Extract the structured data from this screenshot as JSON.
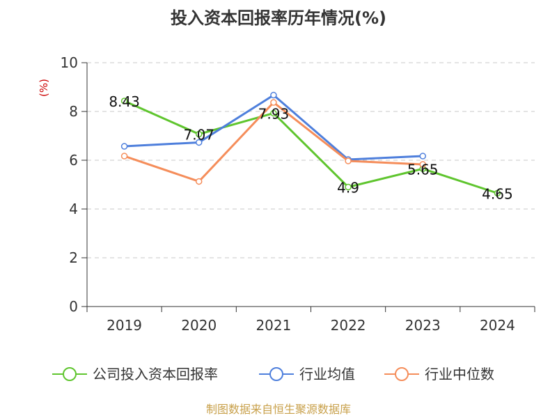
{
  "chart_data": {
    "type": "line",
    "title": "投入资本回报率历年情况(%)",
    "ylabel": "(%)",
    "categories": [
      "2019",
      "2020",
      "2021",
      "2022",
      "2023",
      "2024"
    ],
    "y_ticks": [
      "0",
      "2",
      "4",
      "6",
      "8",
      "10"
    ],
    "ylim": [
      0,
      10
    ],
    "grid": "horizontal-dashed",
    "legend_position": "bottom",
    "series": [
      {
        "name": "公司投入资本回报率",
        "color": "#5fc52e",
        "values": [
          8.43,
          7.07,
          7.93,
          4.9,
          5.65,
          4.65
        ],
        "labels": [
          "8.43",
          "7.07",
          "7.93",
          "4.9",
          "5.65",
          "4.65"
        ]
      },
      {
        "name": "行业均值",
        "color": "#4e7fdc",
        "values": [
          6.57,
          6.73,
          8.67,
          6.03,
          6.17,
          null
        ]
      },
      {
        "name": "行业中位数",
        "color": "#f58d5a",
        "values": [
          6.17,
          5.13,
          8.37,
          5.97,
          5.83,
          null
        ]
      }
    ],
    "source": "制图数据来自恒生聚源数据库"
  }
}
